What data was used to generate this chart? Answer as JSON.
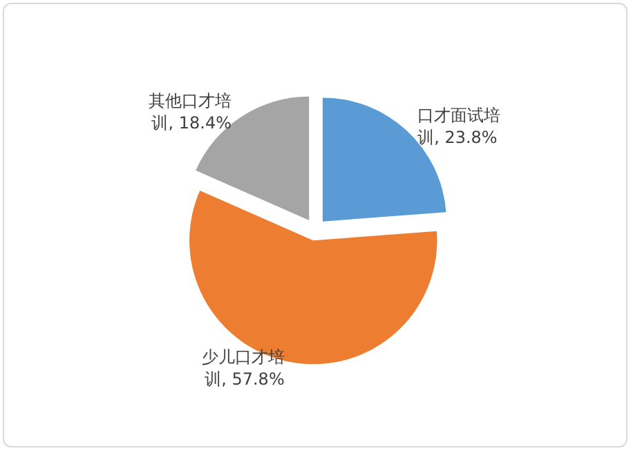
{
  "chart_data": {
    "type": "pie",
    "categories": [
      "口才面试培训",
      "少儿口才培训",
      "其他口才培训"
    ],
    "values": [
      23.8,
      57.8,
      18.4
    ],
    "colors": [
      "#5b9bd5",
      "#ed7d31",
      "#a5a5a5"
    ],
    "value_labels": [
      "23.8%",
      "57.8%",
      "18.4%"
    ],
    "legend": false
  }
}
